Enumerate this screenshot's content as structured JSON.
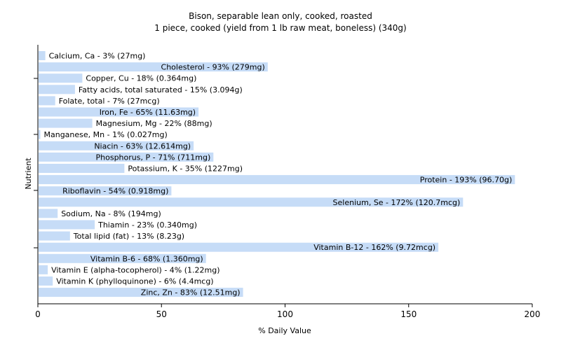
{
  "chart_data": {
    "type": "bar",
    "orientation": "horizontal",
    "title": "Bison, separable lean only, cooked, roasted",
    "subtitle": "1 piece, cooked (yield from 1 lb raw meat, boneless) (340g)",
    "xlabel": "% Daily Value",
    "ylabel": "Nutrient",
    "xlim": [
      0,
      200
    ],
    "xticks": [
      "0",
      "50",
      "100",
      "150",
      "200"
    ],
    "grid": false,
    "bar_color": "#c6dcf7",
    "categories": [
      "Calcium, Ca",
      "Cholesterol",
      "Copper, Cu",
      "Fatty acids, total saturated",
      "Folate, total",
      "Iron, Fe",
      "Magnesium, Mg",
      "Manganese, Mn",
      "Niacin",
      "Phosphorus, P",
      "Potassium, K",
      "Protein",
      "Riboflavin",
      "Selenium, Se",
      "Sodium, Na",
      "Thiamin",
      "Total lipid (fat)",
      "Vitamin B-12",
      "Vitamin B-6",
      "Vitamin E (alpha-tocopherol)",
      "Vitamin K (phylloquinone)",
      "Zinc, Zn"
    ],
    "values": [
      3,
      93,
      18,
      15,
      7,
      65,
      22,
      1,
      63,
      71,
      35,
      193,
      54,
      172,
      8,
      23,
      13,
      162,
      68,
      4,
      6,
      83
    ],
    "labels": [
      "Calcium, Ca - 3% (27mg)",
      "Cholesterol - 93% (279mg)",
      "Copper, Cu - 18% (0.364mg)",
      "Fatty acids, total saturated - 15% (3.094g)",
      "Folate, total - 7% (27mcg)",
      "Iron, Fe - 65% (11.63mg)",
      "Magnesium, Mg - 22% (88mg)",
      "Manganese, Mn - 1% (0.027mg)",
      "Niacin - 63% (12.614mg)",
      "Phosphorus, P - 71% (711mg)",
      "Potassium, K - 35% (1227mg)",
      "Protein - 193% (96.70g)",
      "Riboflavin - 54% (0.918mg)",
      "Selenium, Se - 172% (120.7mcg)",
      "Sodium, Na - 8% (194mg)",
      "Thiamin - 23% (0.340mg)",
      "Total lipid (fat) - 13% (8.23g)",
      "Vitamin B-12 - 162% (9.72mcg)",
      "Vitamin B-6 - 68% (1.360mg)",
      "Vitamin E (alpha-tocopherol) - 4% (1.22mg)",
      "Vitamin K (phylloquinone) - 6% (4.4mcg)",
      "Zinc, Zn - 83% (12.51mg)"
    ]
  }
}
